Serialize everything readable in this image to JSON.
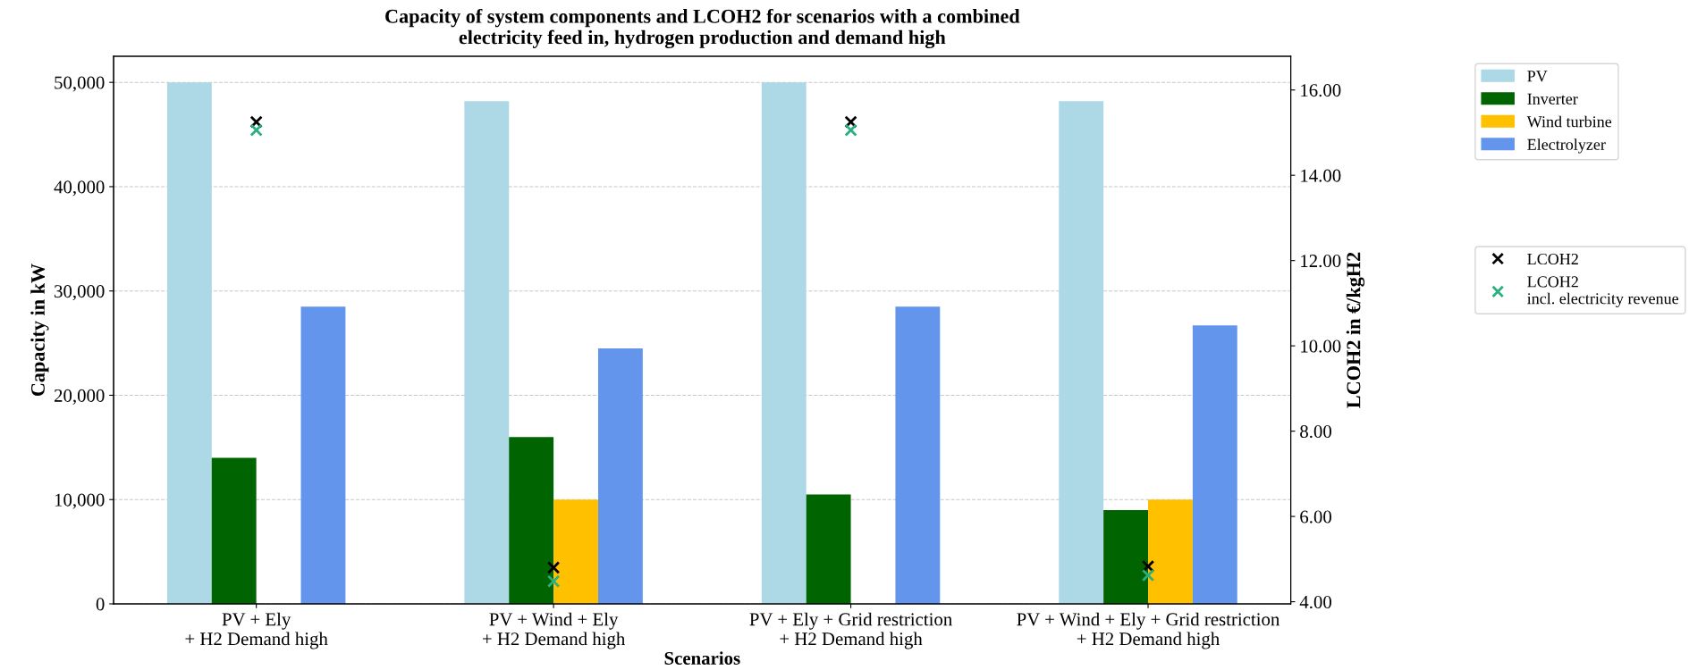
{
  "chart_data": {
    "type": "bar",
    "title": "Capacity of system components and LCOH2 for scenarios with a combined\nelectricity feed in, hydrogen production and demand high",
    "xlabel": "Scenarios",
    "ylabel": "Capacity in kW",
    "y2label": "LCOH2 in €/kgH2",
    "categories": [
      "PV + Ely\n+ H2 Demand high",
      "PV + Wind + Ely\n+ H2 Demand high",
      "PV + Ely + Grid restriction\n+ H2 Demand high",
      "PV + Wind + Ely + Grid restriction\n+ H2 Demand high"
    ],
    "series": [
      {
        "name": "PV",
        "color": "#add8e6",
        "values": [
          50000,
          48200,
          50000,
          48200
        ]
      },
      {
        "name": "Inverter",
        "color": "#006400",
        "values": [
          14000,
          16000,
          10500,
          9000
        ]
      },
      {
        "name": "Wind turbine",
        "color": "#ffc000",
        "values": [
          0,
          10000,
          0,
          10000
        ]
      },
      {
        "name": "Electrolyzer",
        "color": "#6495ed",
        "values": [
          28500,
          24500,
          28500,
          26700
        ]
      },
      {
        "name": "LCOH2",
        "type": "scatter",
        "axis": "y2",
        "marker": "cross",
        "color": "#000000",
        "values": [
          15.25,
          4.8,
          15.25,
          4.83
        ]
      },
      {
        "name": "LCOH2\nincl. electricity revenue",
        "type": "scatter",
        "axis": "y2",
        "marker": "cross",
        "color": "#2ab07f",
        "values": [
          15.06,
          4.48,
          15.06,
          4.62
        ]
      }
    ],
    "ylim": [
      0,
      52500
    ],
    "yticks": [
      {
        "value": 0,
        "label": "0"
      },
      {
        "value": 10000,
        "label": "10,000"
      },
      {
        "value": 20000,
        "label": "20,000"
      },
      {
        "value": 30000,
        "label": "30,000"
      },
      {
        "value": 40000,
        "label": "40,000"
      },
      {
        "value": 50000,
        "label": "50,000"
      }
    ],
    "y2lim": [
      3.95,
      16.79
    ],
    "y2ticks": [
      {
        "value": 4,
        "label": "4.00"
      },
      {
        "value": 6,
        "label": "6.00"
      },
      {
        "value": 8,
        "label": "8.00"
      },
      {
        "value": 10,
        "label": "10.00"
      },
      {
        "value": 12,
        "label": "12.00"
      },
      {
        "value": 14,
        "label": "14.00"
      },
      {
        "value": 16,
        "label": "16.00"
      }
    ],
    "grid": "y",
    "legend": "right"
  }
}
